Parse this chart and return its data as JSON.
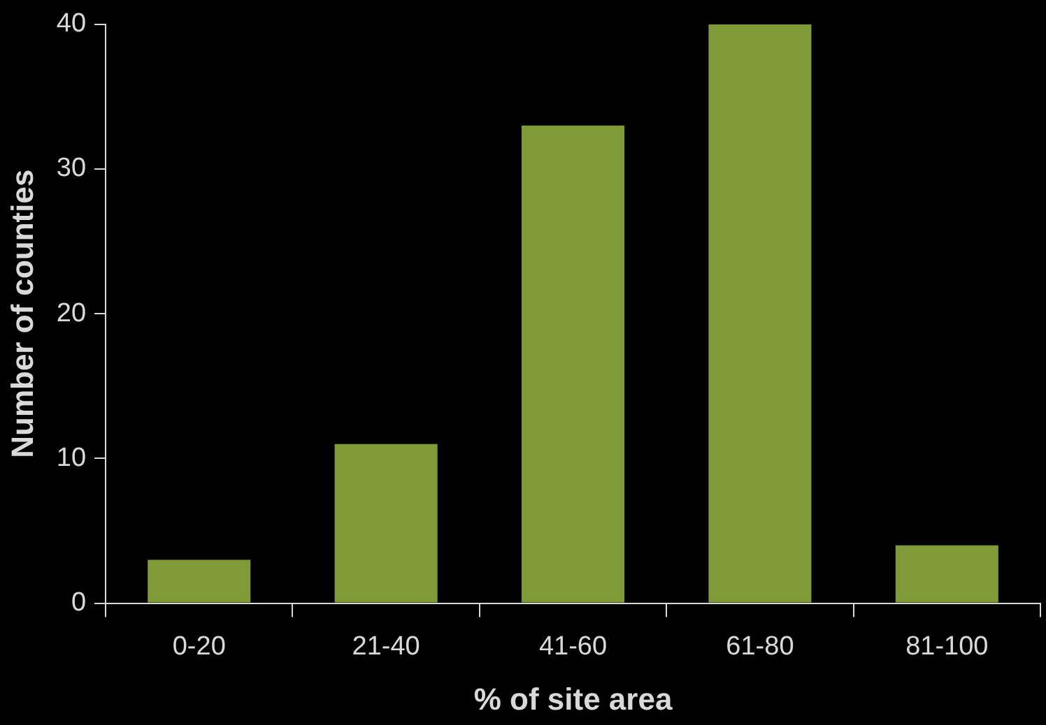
{
  "chart_data": {
    "type": "bar",
    "xlabel": "% of site area",
    "ylabel": "Number of counties",
    "categories": [
      "0-20",
      "21-40",
      "41-60",
      "61-80",
      "81-100"
    ],
    "values": [
      3,
      11,
      33,
      40,
      4
    ],
    "color": "#7f9a37",
    "ylim": [
      0,
      40
    ],
    "yticks": [
      0,
      10,
      20,
      30,
      40
    ],
    "grid": false,
    "legend": false
  }
}
